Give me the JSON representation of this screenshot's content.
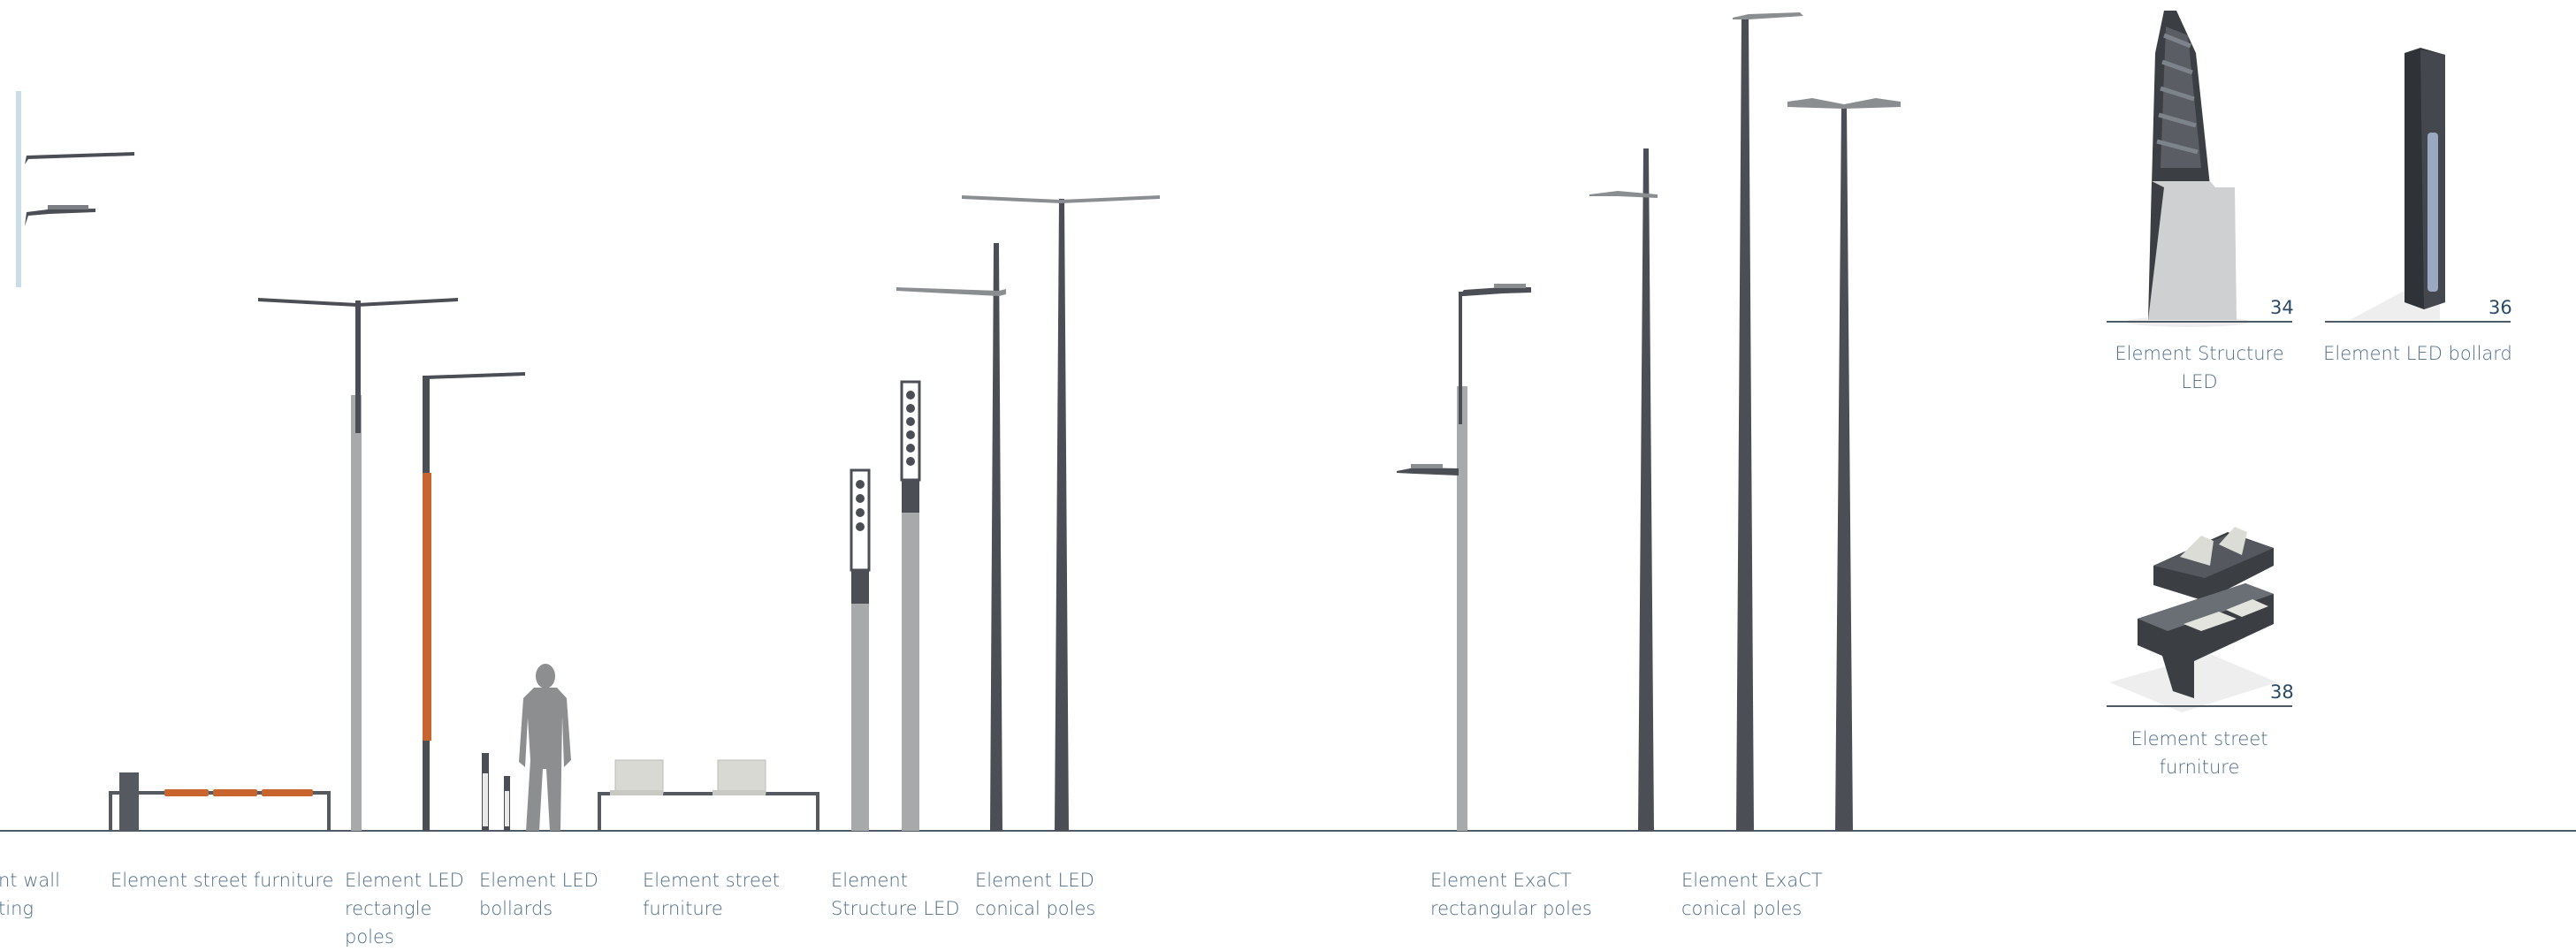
{
  "elevation_labels": {
    "wall_lighting": [
      "nt wall",
      "ting"
    ],
    "street_furniture": [
      "Element street furniture"
    ],
    "led_rectangle_poles": [
      "Element LED",
      "rectangle",
      "poles"
    ],
    "led_bollards": [
      "Element LED",
      "bollards"
    ],
    "street_furniture_2": [
      "Element street",
      "furniture"
    ],
    "structure_led": [
      "Element",
      "Structure LED"
    ],
    "led_conical_poles": [
      "Element LED",
      "conical poles"
    ],
    "exact_rectangular_poles": [
      "Element ExaCT",
      "rectangular poles"
    ],
    "exact_conical_poles": [
      "Element ExaCT",
      "conical poles"
    ]
  },
  "products": [
    {
      "page": "34",
      "label": [
        "Element Structure",
        "LED"
      ]
    },
    {
      "page": "36",
      "label": [
        "Element LED bollard"
      ]
    },
    {
      "page": "38",
      "label": [
        "Element street",
        "furniture"
      ]
    }
  ],
  "colors": {
    "pole_dark": "#4b4f55",
    "pole_light": "#a7a9ab",
    "wood": "#c8642e",
    "ground": "#4e5a66",
    "caption": "#4f6d87",
    "page_number": "#2b4a66"
  }
}
